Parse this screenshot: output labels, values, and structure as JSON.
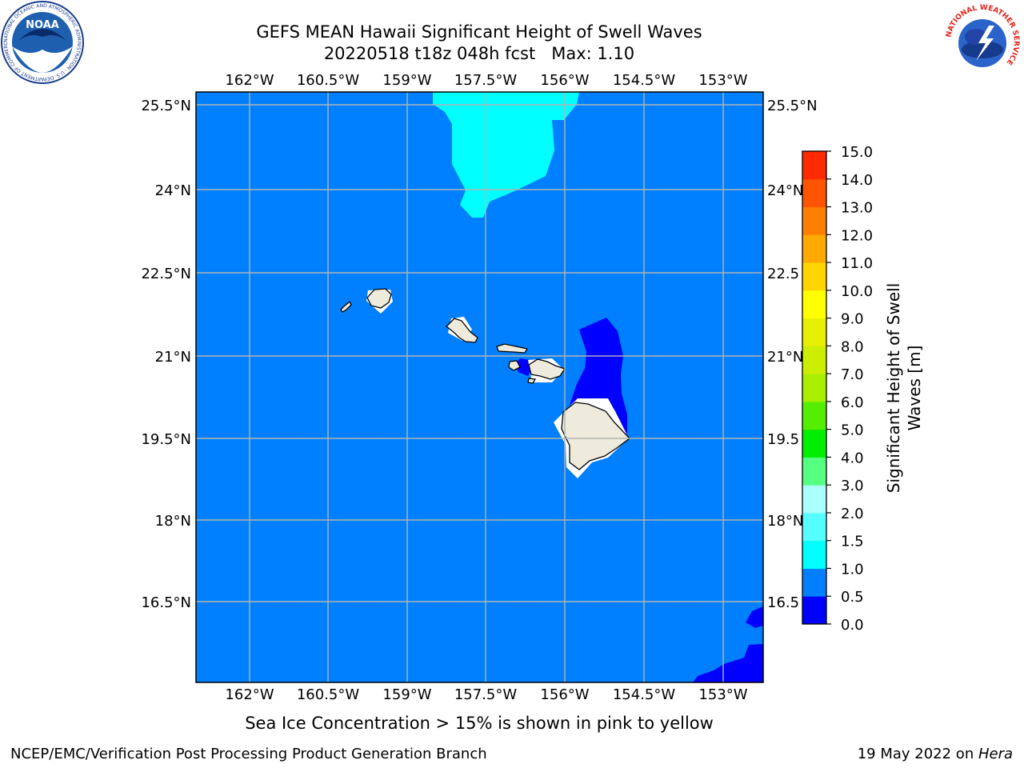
{
  "header": {
    "title": "GEFS MEAN Hawaii Significant Height of Swell Waves",
    "subtitle": "20220518 t18z 048h fcst   Max: 1.10"
  },
  "map": {
    "lon_labels": [
      "162°W",
      "160.5°W",
      "159°W",
      "157.5°W",
      "156°W",
      "154.5°W",
      "153°W"
    ],
    "lat_labels_left": [
      "25.5°N",
      "24°N",
      "22.5°N",
      "21°N",
      "19.5°N",
      "18°N",
      "16.5°N"
    ],
    "lat_labels_right": [
      "25.5°N",
      "24°N",
      "22.5",
      "21°N",
      "19.5",
      "18°N",
      "16.5"
    ],
    "colors": {
      "background_field": "#0080ff",
      "low_field": "#0000ff",
      "high_field": "#00ffff",
      "land": "#eeeadc",
      "grid": "#b3b3b3"
    }
  },
  "colorbar": {
    "label_line1": "Significant Height of Swell",
    "label_line2": "Waves [m]",
    "ticks": [
      "0.0",
      "0.5",
      "1.0",
      "1.5",
      "2.0",
      "3.0",
      "4.0",
      "5.0",
      "6.0",
      "7.0",
      "8.0",
      "9.0",
      "10.0",
      "11.0",
      "12.0",
      "13.0",
      "14.0",
      "15.0"
    ],
    "colors": [
      "#0000ff",
      "#0080ff",
      "#00ffff",
      "#55ffff",
      "#aaffff",
      "#55ff80",
      "#00ee00",
      "#55ee00",
      "#aaee00",
      "#ccee00",
      "#e6f000",
      "#ffff00",
      "#ffd500",
      "#ffaa00",
      "#ff8000",
      "#ff5500",
      "#ff2a00",
      "#ff0000"
    ]
  },
  "footer": {
    "sea_ice_note": "Sea Ice Concentration > 15% is shown in pink to yellow",
    "branch": "NCEP/EMC/Verification Post Processing Product Generation Branch",
    "date": "19 May 2022 on ",
    "host": "Hera"
  },
  "logos": {
    "noaa_text": "NOAA",
    "noaa_ring": "NATIONAL OCEANIC AND ATMOSPHERIC ADMINISTRATION · U.S. DEPARTMENT OF COMMERCE",
    "nws_ring": "NATIONAL WEATHER SERVICE"
  }
}
